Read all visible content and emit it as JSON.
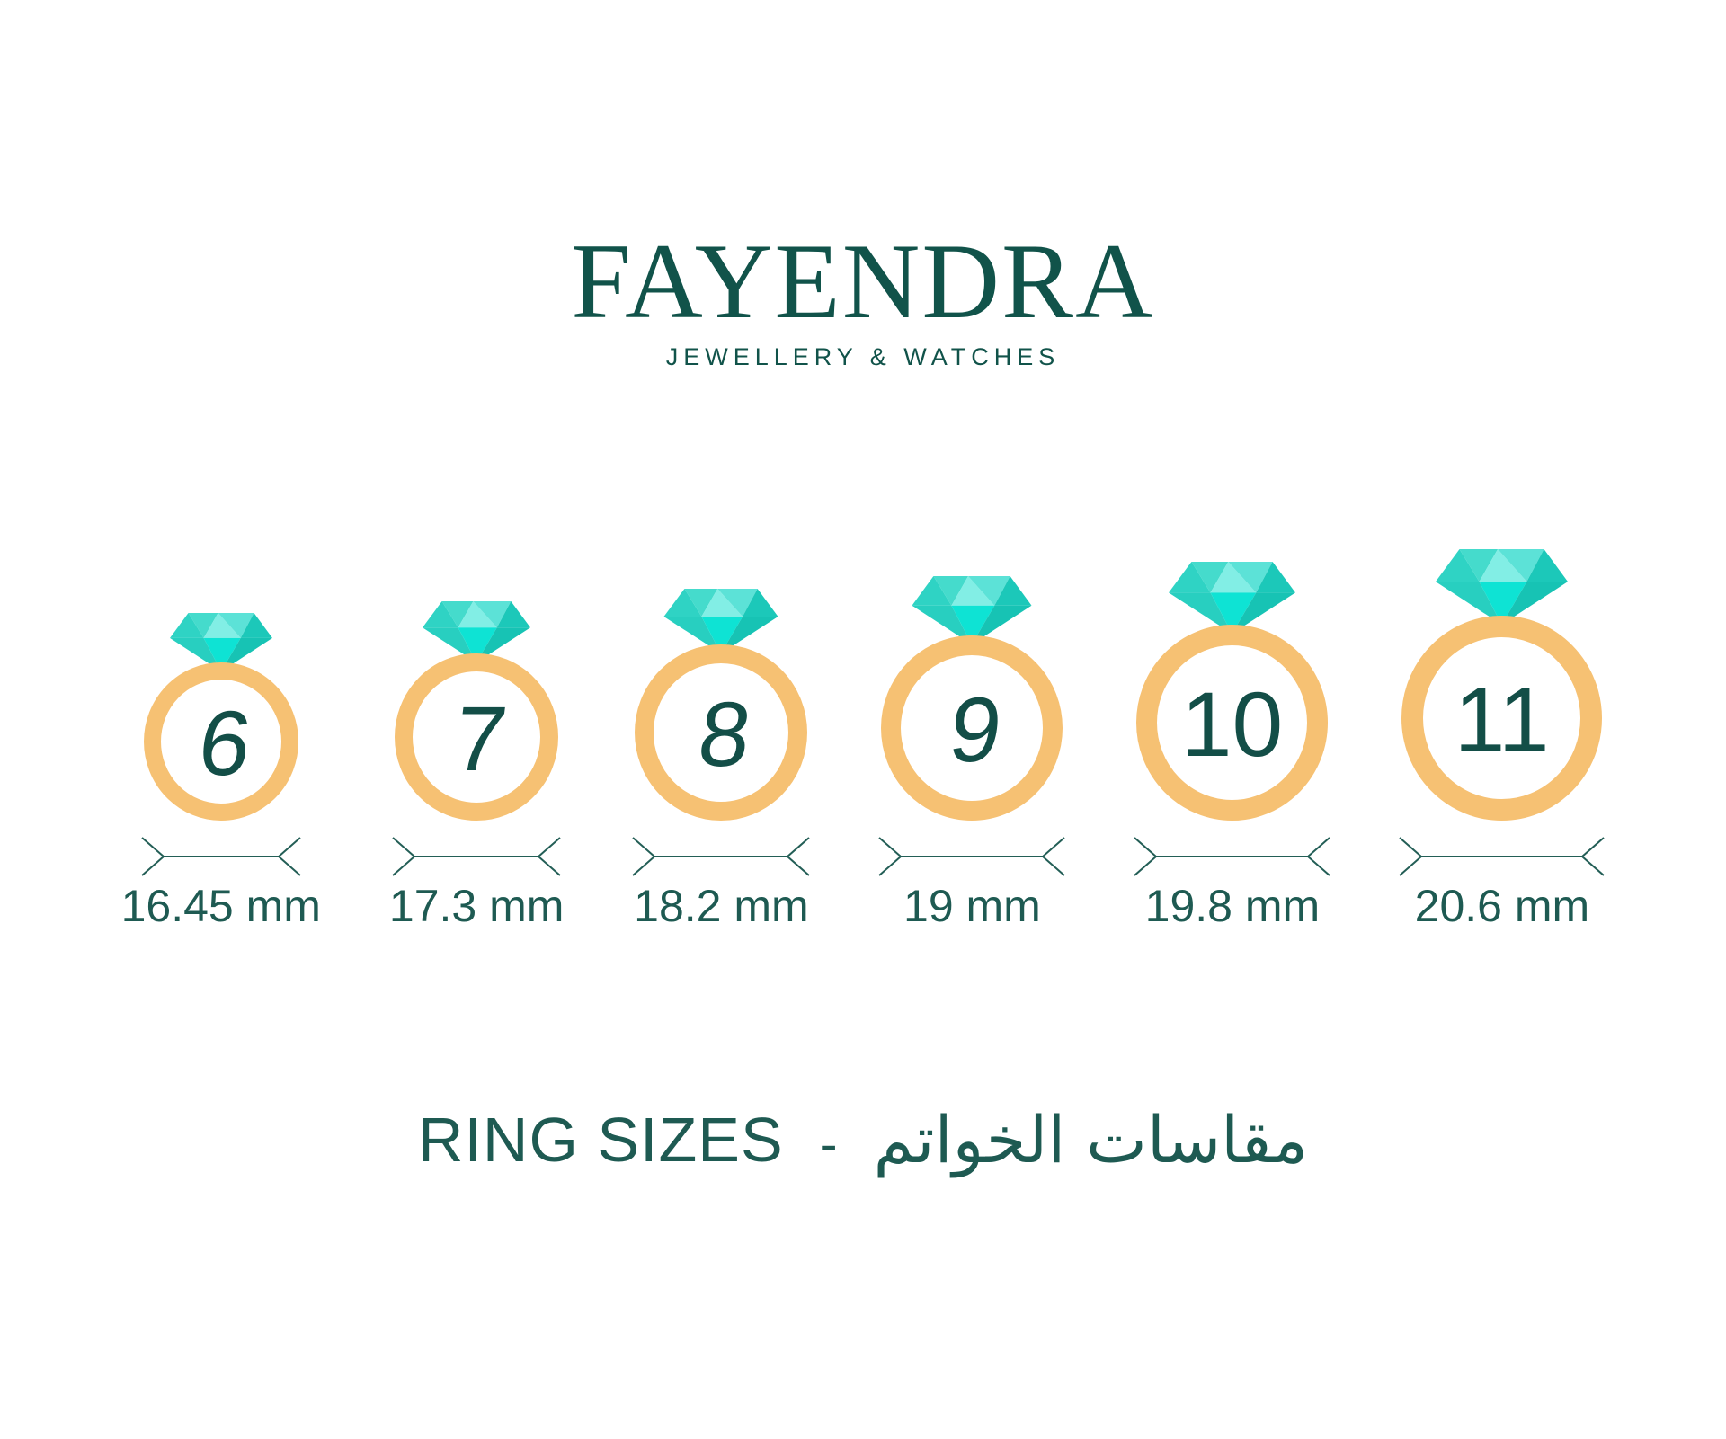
{
  "brand": {
    "name": "FAYENDRA",
    "tagline": "JEWELLERY & WATCHES"
  },
  "rings": [
    {
      "size": "6",
      "diameter": "16.45 mm"
    },
    {
      "size": "7",
      "diameter": "17.3 mm"
    },
    {
      "size": "8",
      "diameter": "18.2 mm"
    },
    {
      "size": "9",
      "diameter": "19 mm"
    },
    {
      "size": "10",
      "diameter": "19.8 mm"
    },
    {
      "size": "11",
      "diameter": "20.6 mm"
    }
  ],
  "caption": {
    "en": "RING SIZES",
    "separator": "-",
    "ar": "مقاسات الخواتم"
  },
  "colors": {
    "teal_dark": "#11534A",
    "teal_text": "#1E5A52",
    "number_teal": "#134E47",
    "arrow_teal": "#235E56",
    "band_gold": "#F6C173",
    "diamond_facets": [
      "#2FD3C4",
      "#45DBCC",
      "#82EEE5",
      "#5CE2D7",
      "#1CC8B9",
      "#28CFC0",
      "#0EE3D4",
      "#17C3B4"
    ]
  }
}
